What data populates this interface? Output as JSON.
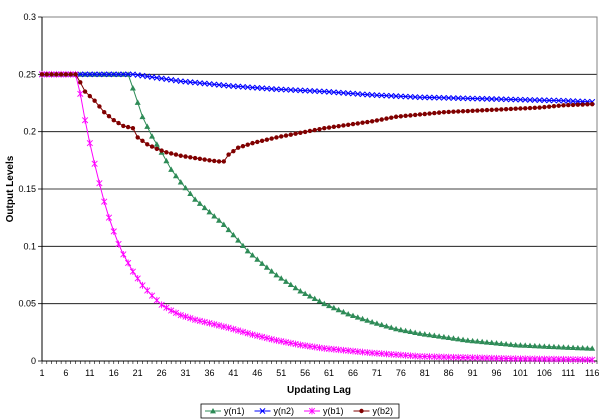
{
  "chart_data": {
    "type": "line",
    "xlabel": "Updating Lag",
    "ylabel": "Output Levels",
    "ylim": [
      0,
      0.3
    ],
    "yticks": [
      "0",
      "0.05",
      "0.1",
      "0.15",
      "0.2",
      "0.25",
      "0.3"
    ],
    "xticks": [
      "1",
      "6",
      "11",
      "16",
      "21",
      "26",
      "31",
      "36",
      "41",
      "46",
      "51",
      "56",
      "61",
      "66",
      "71",
      "76",
      "81",
      "86",
      "91",
      "96",
      "101",
      "106",
      "111",
      "116"
    ],
    "x_range": [
      1,
      117
    ],
    "grid": "horizontal",
    "legend_position": "bottom",
    "series": [
      {
        "name": "y(n1)",
        "color": "#2e8b57",
        "marker": "triangle",
        "points": [
          [
            1,
            0.25
          ],
          [
            5,
            0.25
          ],
          [
            10,
            0.25
          ],
          [
            15,
            0.25
          ],
          [
            19,
            0.25
          ],
          [
            20,
            0.238
          ],
          [
            22,
            0.213
          ],
          [
            24,
            0.196
          ],
          [
            26,
            0.182
          ],
          [
            28,
            0.167
          ],
          [
            30,
            0.156
          ],
          [
            33,
            0.141
          ],
          [
            36,
            0.13
          ],
          [
            39,
            0.119
          ],
          [
            41,
            0.11
          ],
          [
            44,
            0.096
          ],
          [
            47,
            0.085
          ],
          [
            50,
            0.075
          ],
          [
            55,
            0.061
          ],
          [
            60,
            0.05
          ],
          [
            65,
            0.041
          ],
          [
            70,
            0.034
          ],
          [
            75,
            0.028
          ],
          [
            80,
            0.024
          ],
          [
            85,
            0.021
          ],
          [
            90,
            0.018
          ],
          [
            95,
            0.016
          ],
          [
            100,
            0.014
          ],
          [
            105,
            0.013
          ],
          [
            110,
            0.012
          ],
          [
            116,
            0.011
          ]
        ]
      },
      {
        "name": "y(n2)",
        "color": "#0000ff",
        "marker": "x",
        "points": [
          [
            1,
            0.25
          ],
          [
            10,
            0.25
          ],
          [
            20,
            0.25
          ],
          [
            25,
            0.247
          ],
          [
            30,
            0.244
          ],
          [
            40,
            0.24
          ],
          [
            50,
            0.237
          ],
          [
            60,
            0.235
          ],
          [
            70,
            0.232
          ],
          [
            80,
            0.23
          ],
          [
            90,
            0.229
          ],
          [
            100,
            0.228
          ],
          [
            110,
            0.227
          ],
          [
            116,
            0.226
          ]
        ]
      },
      {
        "name": "y(b1)",
        "color": "#ff00ff",
        "marker": "star",
        "points": [
          [
            1,
            0.25
          ],
          [
            5,
            0.25
          ],
          [
            8,
            0.25
          ],
          [
            9,
            0.233
          ],
          [
            10,
            0.21
          ],
          [
            11,
            0.19
          ],
          [
            12,
            0.172
          ],
          [
            13,
            0.155
          ],
          [
            14,
            0.139
          ],
          [
            15,
            0.125
          ],
          [
            16,
            0.113
          ],
          [
            17,
            0.102
          ],
          [
            18,
            0.093
          ],
          [
            20,
            0.078
          ],
          [
            22,
            0.066
          ],
          [
            24,
            0.057
          ],
          [
            26,
            0.049
          ],
          [
            28,
            0.044
          ],
          [
            30,
            0.04
          ],
          [
            33,
            0.036
          ],
          [
            36,
            0.033
          ],
          [
            40,
            0.029
          ],
          [
            45,
            0.023
          ],
          [
            50,
            0.018
          ],
          [
            55,
            0.014
          ],
          [
            60,
            0.011
          ],
          [
            70,
            0.007
          ],
          [
            80,
            0.004
          ],
          [
            90,
            0.003
          ],
          [
            100,
            0.002
          ],
          [
            110,
            0.0015
          ],
          [
            116,
            0.001
          ]
        ]
      },
      {
        "name": "y(b2)",
        "color": "#800000",
        "marker": "circle",
        "points": [
          [
            1,
            0.25
          ],
          [
            5,
            0.25
          ],
          [
            8,
            0.25
          ],
          [
            9,
            0.243
          ],
          [
            10,
            0.235
          ],
          [
            12,
            0.227
          ],
          [
            14,
            0.217
          ],
          [
            16,
            0.21
          ],
          [
            18,
            0.205
          ],
          [
            20,
            0.203
          ],
          [
            21,
            0.195
          ],
          [
            23,
            0.189
          ],
          [
            25,
            0.185
          ],
          [
            27,
            0.182
          ],
          [
            30,
            0.179
          ],
          [
            33,
            0.177
          ],
          [
            36,
            0.175
          ],
          [
            38,
            0.174
          ],
          [
            39,
            0.174
          ],
          [
            40,
            0.18
          ],
          [
            42,
            0.186
          ],
          [
            45,
            0.19
          ],
          [
            50,
            0.195
          ],
          [
            55,
            0.199
          ],
          [
            60,
            0.203
          ],
          [
            65,
            0.206
          ],
          [
            70,
            0.209
          ],
          [
            75,
            0.213
          ],
          [
            80,
            0.215
          ],
          [
            85,
            0.217
          ],
          [
            90,
            0.218
          ],
          [
            95,
            0.219
          ],
          [
            100,
            0.22
          ],
          [
            105,
            0.221
          ],
          [
            110,
            0.223
          ],
          [
            116,
            0.224
          ]
        ]
      }
    ]
  }
}
